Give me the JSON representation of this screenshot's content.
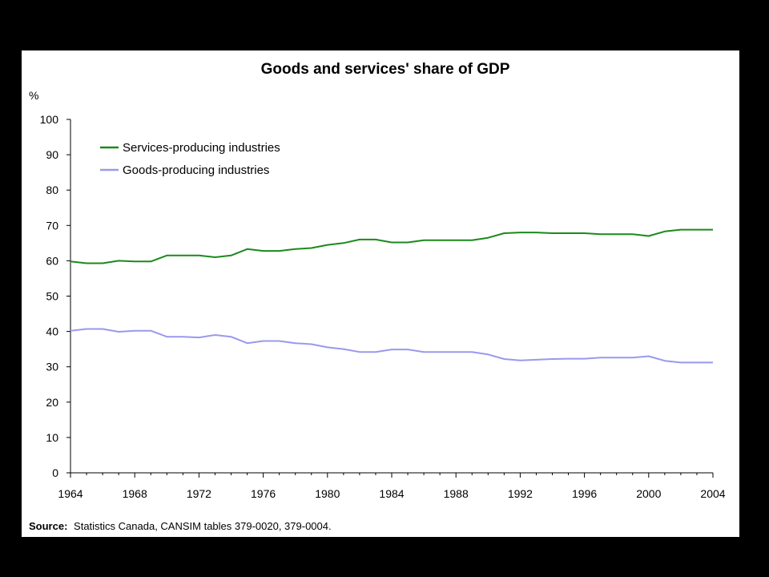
{
  "chart_data": {
    "type": "line",
    "title": "Goods and services' share of GDP",
    "ylabel": "%",
    "xlabel": "",
    "ylim": [
      0,
      100
    ],
    "xlim": [
      1964,
      2004
    ],
    "y_ticks": [
      0,
      10,
      20,
      30,
      40,
      50,
      60,
      70,
      80,
      90,
      100
    ],
    "x_ticks": [
      1964,
      1968,
      1972,
      1976,
      1980,
      1984,
      1988,
      1992,
      1996,
      2000,
      2004
    ],
    "grid": false,
    "legend_placement": "top-left",
    "x": [
      1964,
      1965,
      1966,
      1967,
      1968,
      1969,
      1970,
      1971,
      1972,
      1973,
      1974,
      1975,
      1976,
      1977,
      1978,
      1979,
      1980,
      1981,
      1982,
      1983,
      1984,
      1985,
      1986,
      1987,
      1988,
      1989,
      1990,
      1991,
      1992,
      1993,
      1994,
      1995,
      1996,
      1997,
      1998,
      1999,
      2000,
      2001,
      2002,
      2003,
      2004
    ],
    "series": [
      {
        "name": "Services-producing industries",
        "color": "#1a8a1a",
        "values": [
          59.8,
          59.3,
          59.3,
          60.0,
          59.8,
          59.8,
          61.5,
          61.5,
          61.5,
          61.0,
          61.5,
          63.3,
          62.8,
          62.8,
          63.3,
          63.6,
          64.5,
          65.0,
          66.0,
          66.0,
          65.2,
          65.2,
          65.8,
          65.8,
          65.8,
          65.8,
          66.5,
          67.8,
          68.0,
          68.0,
          67.8,
          67.8,
          67.8,
          67.5,
          67.5,
          67.5,
          67.0,
          68.3,
          68.8,
          68.8,
          68.8
        ]
      },
      {
        "name": "Goods-producing industries",
        "color": "#9999ee",
        "values": [
          40.2,
          40.7,
          40.7,
          39.9,
          40.2,
          40.2,
          38.5,
          38.5,
          38.3,
          39.0,
          38.5,
          36.7,
          37.3,
          37.3,
          36.7,
          36.4,
          35.5,
          35.0,
          34.2,
          34.2,
          34.9,
          34.9,
          34.2,
          34.2,
          34.2,
          34.2,
          33.5,
          32.2,
          31.8,
          32.0,
          32.2,
          32.3,
          32.3,
          32.6,
          32.6,
          32.6,
          33.0,
          31.7,
          31.2,
          31.2,
          31.2
        ]
      }
    ],
    "source_label": "Source:",
    "source_text": "Statistics Canada, CANSIM tables 379-0020, 379-0004."
  }
}
